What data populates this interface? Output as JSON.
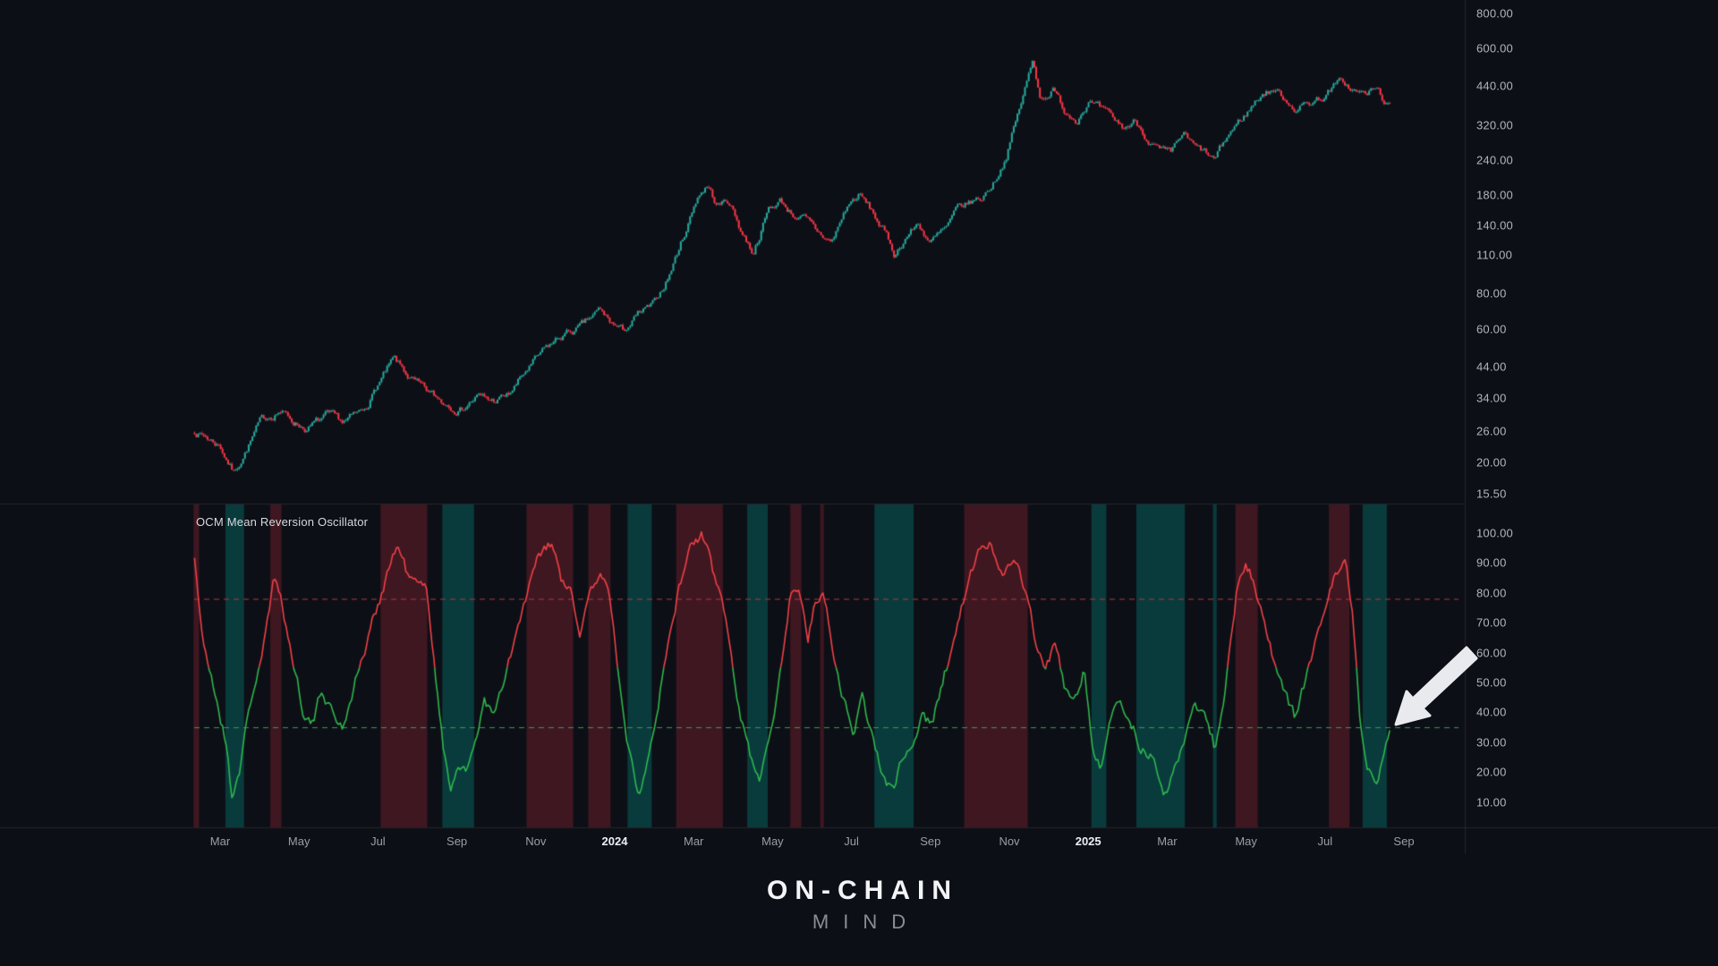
{
  "app": {
    "background": "#0d0f16"
  },
  "oscillator_pane": {
    "title": "OCM Mean Reversion Oscillator"
  },
  "logo": {
    "line1": "ON-CHAIN",
    "line2": "MIND"
  },
  "price_axis": {
    "ticks": [
      {
        "label": "800.00",
        "value": 800
      },
      {
        "label": "600.00",
        "value": 600
      },
      {
        "label": "440.00",
        "value": 440
      },
      {
        "label": "320.00",
        "value": 320
      },
      {
        "label": "240.00",
        "value": 240
      },
      {
        "label": "180.00",
        "value": 180
      },
      {
        "label": "140.00",
        "value": 140
      },
      {
        "label": "110.00",
        "value": 110
      },
      {
        "label": "80.00",
        "value": 80
      },
      {
        "label": "60.00",
        "value": 60
      },
      {
        "label": "44.00",
        "value": 44
      },
      {
        "label": "34.00",
        "value": 34
      },
      {
        "label": "26.00",
        "value": 26
      },
      {
        "label": "20.00",
        "value": 20
      },
      {
        "label": "15.50",
        "value": 15.5
      }
    ]
  },
  "osc_axis": {
    "ticks": [
      {
        "label": "100.00",
        "value": 100
      },
      {
        "label": "90.00",
        "value": 90
      },
      {
        "label": "80.00",
        "value": 80
      },
      {
        "label": "70.00",
        "value": 70
      },
      {
        "label": "60.00",
        "value": 60
      },
      {
        "label": "50.00",
        "value": 50
      },
      {
        "label": "40.00",
        "value": 40
      },
      {
        "label": "30.00",
        "value": 30
      },
      {
        "label": "20.00",
        "value": 20
      },
      {
        "label": "10.00",
        "value": 10
      }
    ]
  },
  "time_axis": {
    "ticks": [
      {
        "label": "Mar",
        "t": 1,
        "year": false
      },
      {
        "label": "May",
        "t": 3,
        "year": false
      },
      {
        "label": "Jul",
        "t": 5,
        "year": false
      },
      {
        "label": "Sep",
        "t": 7,
        "year": false
      },
      {
        "label": "Nov",
        "t": 9,
        "year": false
      },
      {
        "label": "2024",
        "t": 11,
        "year": true
      },
      {
        "label": "Mar",
        "t": 13,
        "year": false
      },
      {
        "label": "May",
        "t": 15,
        "year": false
      },
      {
        "label": "Jul",
        "t": 17,
        "year": false
      },
      {
        "label": "Sep",
        "t": 19,
        "year": false
      },
      {
        "label": "Nov",
        "t": 21,
        "year": false
      },
      {
        "label": "2025",
        "t": 23,
        "year": true
      },
      {
        "label": "Mar",
        "t": 25,
        "year": false
      },
      {
        "label": "May",
        "t": 27,
        "year": false
      },
      {
        "label": "Jul",
        "t": 29,
        "year": false
      },
      {
        "label": "Sep",
        "t": 31,
        "year": false
      }
    ]
  },
  "chart_data": [
    {
      "type": "candlestick",
      "title": "",
      "y_scale": "log",
      "ylim": [
        15.5,
        800
      ],
      "y_ticks": [
        800,
        600,
        440,
        320,
        240,
        180,
        140,
        110,
        80,
        60,
        44,
        34,
        26,
        20,
        15.5
      ],
      "x_unit": "months_from_2023-02",
      "x_start_t": 0.35,
      "x_end_t": 30.64,
      "bars": 640,
      "anchors_t_price": [
        [
          0.35,
          26
        ],
        [
          0.7,
          24.5
        ],
        [
          1.0,
          23
        ],
        [
          1.35,
          18.5
        ],
        [
          1.6,
          21.5
        ],
        [
          2.0,
          27.5
        ],
        [
          2.5,
          31
        ],
        [
          2.8,
          28.5
        ],
        [
          3.2,
          26.5
        ],
        [
          3.7,
          29
        ],
        [
          4.1,
          27.5
        ],
        [
          4.6,
          30
        ],
        [
          5.0,
          38
        ],
        [
          5.4,
          46
        ],
        [
          5.8,
          40
        ],
        [
          6.2,
          35.5
        ],
        [
          6.6,
          33
        ],
        [
          7.1,
          31.5
        ],
        [
          7.5,
          34.5
        ],
        [
          7.9,
          33
        ],
        [
          8.3,
          34.5
        ],
        [
          8.8,
          43
        ],
        [
          9.3,
          51
        ],
        [
          9.7,
          57
        ],
        [
          10.2,
          61
        ],
        [
          10.6,
          69
        ],
        [
          10.9,
          63
        ],
        [
          11.2,
          58.5
        ],
        [
          11.6,
          67
        ],
        [
          12.0,
          72
        ],
        [
          12.4,
          95
        ],
        [
          12.8,
          135
        ],
        [
          13.1,
          180
        ],
        [
          13.35,
          196
        ],
        [
          13.6,
          165
        ],
        [
          13.9,
          172
        ],
        [
          14.2,
          135
        ],
        [
          14.5,
          113
        ],
        [
          14.9,
          160
        ],
        [
          15.2,
          172
        ],
        [
          15.5,
          155
        ],
        [
          15.8,
          148
        ],
        [
          16.1,
          132
        ],
        [
          16.5,
          122
        ],
        [
          16.9,
          165
        ],
        [
          17.2,
          180
        ],
        [
          17.5,
          158
        ],
        [
          17.8,
          135
        ],
        [
          18.1,
          110
        ],
        [
          18.4,
          130
        ],
        [
          18.7,
          142
        ],
        [
          19.0,
          122
        ],
        [
          19.4,
          135
        ],
        [
          19.7,
          158
        ],
        [
          20.0,
          168
        ],
        [
          20.3,
          175
        ],
        [
          20.6,
          200
        ],
        [
          20.9,
          245
        ],
        [
          21.2,
          340
        ],
        [
          21.6,
          540
        ],
        [
          21.8,
          400
        ],
        [
          22.1,
          430
        ],
        [
          22.4,
          360
        ],
        [
          22.7,
          340
        ],
        [
          23.0,
          395
        ],
        [
          23.3,
          360
        ],
        [
          23.6,
          330
        ],
        [
          23.9,
          310
        ],
        [
          24.2,
          330
        ],
        [
          24.5,
          290
        ],
        [
          24.8,
          258
        ],
        [
          25.1,
          245
        ],
        [
          25.4,
          295
        ],
        [
          25.7,
          262
        ],
        [
          26.0,
          250
        ],
        [
          26.2,
          237
        ],
        [
          26.6,
          300
        ],
        [
          27.0,
          350
        ],
        [
          27.4,
          415
        ],
        [
          27.7,
          430
        ],
        [
          28.0,
          395
        ],
        [
          28.3,
          368
        ],
        [
          28.6,
          385
        ],
        [
          28.9,
          400
        ],
        [
          29.2,
          435
        ],
        [
          29.45,
          455
        ],
        [
          29.7,
          425
        ],
        [
          30.0,
          408
        ],
        [
          30.3,
          428
        ],
        [
          30.64,
          368
        ]
      ],
      "colors": {
        "up": "#26a69a",
        "down": "#f23645"
      }
    },
    {
      "type": "line",
      "title": "OCM Mean Reversion Oscillator",
      "ylim": [
        0,
        110
      ],
      "y_ticks": [
        100,
        90,
        80,
        70,
        60,
        50,
        40,
        30,
        20,
        10
      ],
      "overbought_level": 78,
      "oversold_level": 35,
      "band_red_above": 78,
      "band_teal_below": 30,
      "color_split_level": 55,
      "anchors_t_value": [
        [
          0.35,
          92
        ],
        [
          0.6,
          60
        ],
        [
          0.9,
          45
        ],
        [
          1.15,
          30
        ],
        [
          1.3,
          12
        ],
        [
          1.5,
          22
        ],
        [
          1.8,
          45
        ],
        [
          2.1,
          62
        ],
        [
          2.35,
          82
        ],
        [
          2.55,
          79
        ],
        [
          2.8,
          60
        ],
        [
          3.1,
          42
        ],
        [
          3.35,
          36
        ],
        [
          3.6,
          48
        ],
        [
          3.85,
          40
        ],
        [
          4.1,
          35
        ],
        [
          4.4,
          50
        ],
        [
          4.7,
          62
        ],
        [
          5.0,
          76
        ],
        [
          5.25,
          88
        ],
        [
          5.5,
          96
        ],
        [
          5.75,
          86
        ],
        [
          6.0,
          82
        ],
        [
          6.25,
          80
        ],
        [
          6.45,
          55
        ],
        [
          6.65,
          28
        ],
        [
          6.85,
          15
        ],
        [
          7.05,
          25
        ],
        [
          7.25,
          18
        ],
        [
          7.45,
          30
        ],
        [
          7.7,
          45
        ],
        [
          7.95,
          38
        ],
        [
          8.2,
          50
        ],
        [
          8.5,
          65
        ],
        [
          8.8,
          80
        ],
        [
          9.1,
          92
        ],
        [
          9.4,
          96
        ],
        [
          9.65,
          84
        ],
        [
          9.9,
          79
        ],
        [
          10.1,
          65
        ],
        [
          10.4,
          80
        ],
        [
          10.65,
          88
        ],
        [
          10.9,
          78
        ],
        [
          11.1,
          50
        ],
        [
          11.35,
          28
        ],
        [
          11.6,
          15
        ],
        [
          11.85,
          27
        ],
        [
          12.1,
          45
        ],
        [
          12.35,
          62
        ],
        [
          12.6,
          80
        ],
        [
          12.9,
          95
        ],
        [
          13.2,
          99
        ],
        [
          13.45,
          88
        ],
        [
          13.7,
          78
        ],
        [
          13.95,
          60
        ],
        [
          14.2,
          40
        ],
        [
          14.45,
          25
        ],
        [
          14.7,
          18
        ],
        [
          14.95,
          35
        ],
        [
          15.2,
          55
        ],
        [
          15.45,
          80
        ],
        [
          15.65,
          82
        ],
        [
          15.9,
          65
        ],
        [
          16.1,
          79
        ],
        [
          16.3,
          80
        ],
        [
          16.55,
          60
        ],
        [
          16.8,
          45
        ],
        [
          17.05,
          35
        ],
        [
          17.3,
          45
        ],
        [
          17.55,
          30
        ],
        [
          17.8,
          20
        ],
        [
          18.05,
          12
        ],
        [
          18.3,
          25
        ],
        [
          18.55,
          28
        ],
        [
          18.8,
          40
        ],
        [
          19.05,
          35
        ],
        [
          19.3,
          50
        ],
        [
          19.55,
          62
        ],
        [
          19.9,
          80
        ],
        [
          20.2,
          92
        ],
        [
          20.5,
          97
        ],
        [
          20.8,
          88
        ],
        [
          21.1,
          93
        ],
        [
          21.4,
          80
        ],
        [
          21.65,
          65
        ],
        [
          21.9,
          55
        ],
        [
          22.15,
          62
        ],
        [
          22.4,
          48
        ],
        [
          22.65,
          42
        ],
        [
          22.9,
          55
        ],
        [
          23.1,
          30
        ],
        [
          23.3,
          22
        ],
        [
          23.55,
          35
        ],
        [
          23.8,
          45
        ],
        [
          24.05,
          38
        ],
        [
          24.3,
          30
        ],
        [
          24.6,
          25
        ],
        [
          24.9,
          14
        ],
        [
          25.2,
          20
        ],
        [
          25.45,
          32
        ],
        [
          25.7,
          45
        ],
        [
          25.95,
          38
        ],
        [
          26.2,
          28
        ],
        [
          26.45,
          45
        ],
        [
          26.75,
          79
        ],
        [
          27.0,
          90
        ],
        [
          27.25,
          82
        ],
        [
          27.5,
          68
        ],
        [
          27.75,
          55
        ],
        [
          28.0,
          45
        ],
        [
          28.25,
          38
        ],
        [
          28.5,
          50
        ],
        [
          28.75,
          62
        ],
        [
          29.0,
          72
        ],
        [
          29.25,
          85
        ],
        [
          29.5,
          90
        ],
        [
          29.7,
          75
        ],
        [
          29.9,
          35
        ],
        [
          30.1,
          22
        ],
        [
          30.35,
          18
        ],
        [
          30.64,
          36
        ]
      ],
      "colors": {
        "line_high": "#ef4146",
        "line_low": "#2fb74d",
        "overbought_line": "#b13a44",
        "oversold_line": "#3a9e57",
        "band_red": "rgba(178,44,58,0.30)",
        "band_teal": "rgba(0,163,153,0.30)"
      },
      "annotation": {
        "arrow": "white arrow pointing to current oscillator dip near oversold line",
        "color": "#e9eaee"
      }
    }
  ]
}
